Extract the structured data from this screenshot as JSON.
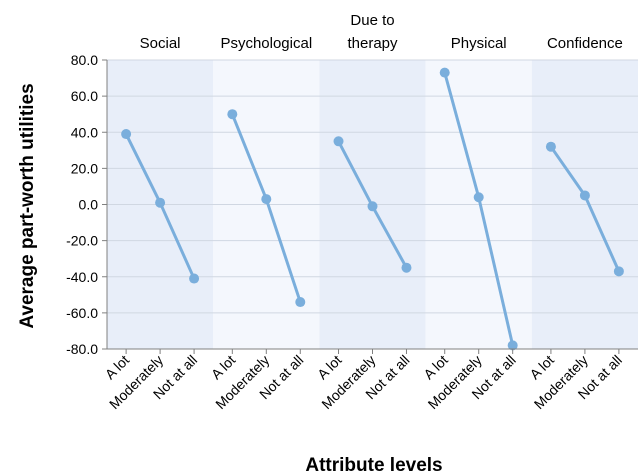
{
  "chart_data": {
    "type": "line",
    "xlabel": "Attribute levels",
    "ylabel": "Average part-worth utilities",
    "ylim": [
      -80,
      80
    ],
    "y_ticks": [
      "80.0",
      "60.0",
      "40.0",
      "20.0",
      "0.0",
      "-20.0",
      "-40.0",
      "-60.0",
      "-80.0"
    ],
    "grid": true,
    "categories": [
      "A lot",
      "Moderately",
      "Not at all"
    ],
    "panels": [
      {
        "title": [
          "Social"
        ],
        "values": [
          39,
          1,
          -41
        ]
      },
      {
        "title": [
          "Psychological"
        ],
        "values": [
          50,
          3,
          -54
        ]
      },
      {
        "title": [
          "Due to",
          "therapy"
        ],
        "values": [
          35,
          -1,
          -35
        ]
      },
      {
        "title": [
          "Physical"
        ],
        "values": [
          73,
          4,
          -78
        ]
      },
      {
        "title": [
          "Confidence"
        ],
        "values": [
          32,
          5,
          -37
        ]
      }
    ],
    "colors": {
      "line": "#7aaedc",
      "band_dark": "#e8eef9",
      "band_light": "#f4f7fd",
      "grid": "#d0d7e2",
      "axis": "#808080"
    }
  }
}
